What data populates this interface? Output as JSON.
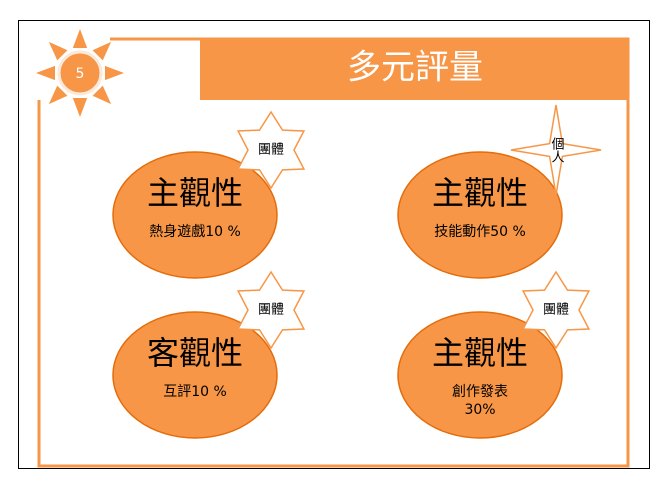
{
  "page_number": "5",
  "title": "多元評量",
  "cards": [
    {
      "heading": "主觀性",
      "lines": [
        "熱身遊戲10 %"
      ],
      "badge": "團體"
    },
    {
      "heading": "主觀性",
      "lines": [
        "技能動作50 %"
      ],
      "badge": "個人"
    },
    {
      "heading": "客觀性",
      "lines": [
        "互評10 %"
      ],
      "badge": "團體"
    },
    {
      "heading": "主觀性",
      "lines": [
        "創作發表",
        "30%"
      ],
      "badge": "團體"
    }
  ]
}
